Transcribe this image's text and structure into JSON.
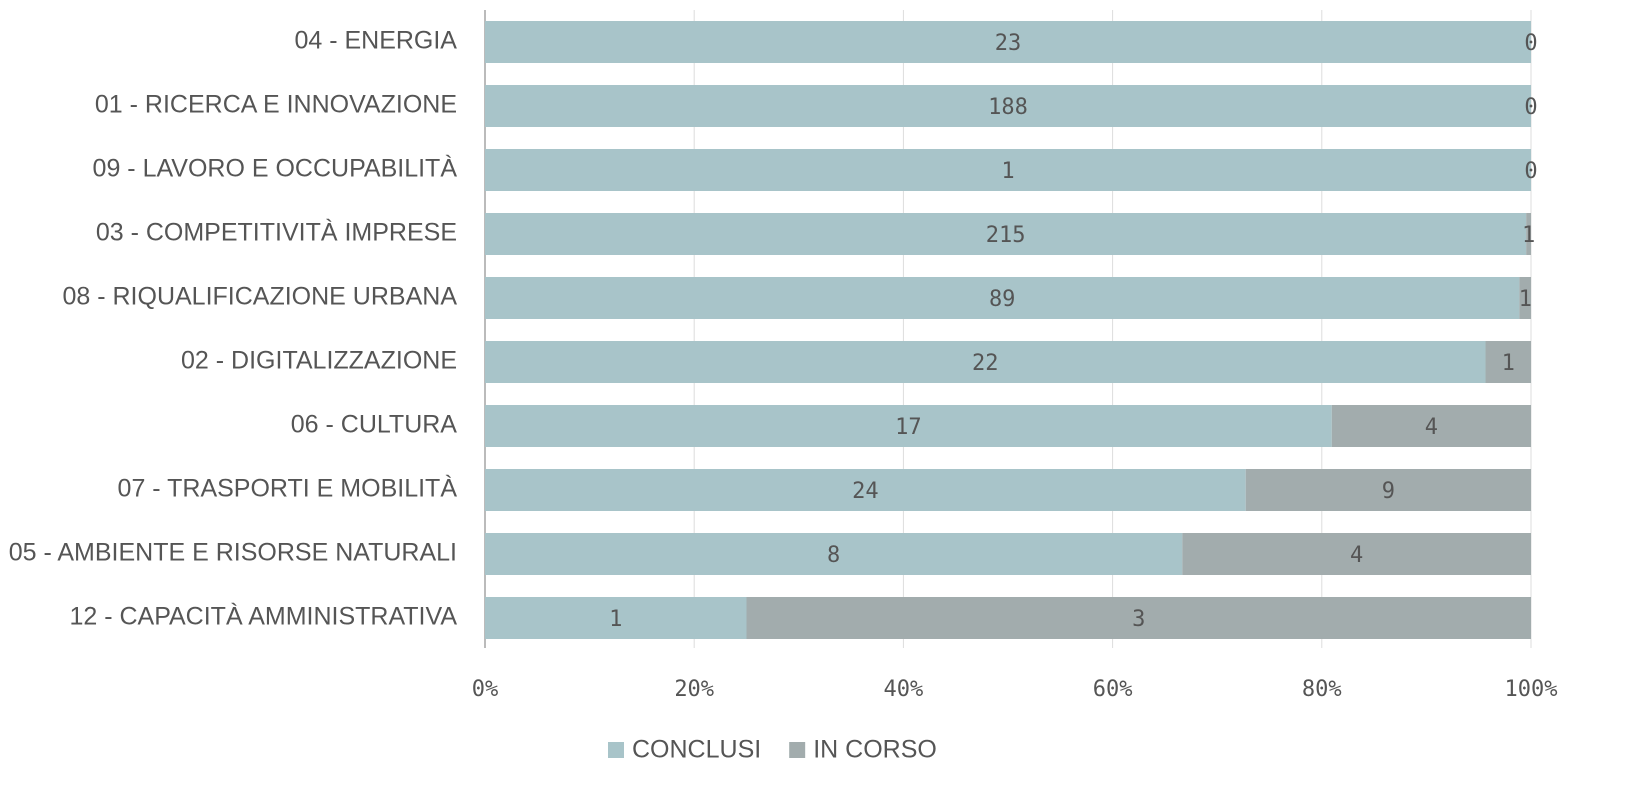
{
  "chart_data": {
    "type": "bar",
    "orientation": "horizontal",
    "stacking": "percent",
    "categories": [
      "04 - ENERGIA",
      "01 - RICERCA E INNOVAZIONE",
      "09 - LAVORO E OCCUPABILITÀ",
      "03 - COMPETITIVITÀ IMPRESE",
      "08 - RIQUALIFICAZIONE URBANA",
      "02 - DIGITALIZZAZIONE",
      "06 - CULTURA",
      "07 - TRASPORTI E MOBILITÀ",
      "05 - AMBIENTE E RISORSE NATURALI",
      "12 - CAPACITÀ AMMINISTRATIVA"
    ],
    "series": [
      {
        "name": "CONCLUSI",
        "color": "#a8c4c9",
        "values": [
          23,
          188,
          1,
          215,
          89,
          22,
          17,
          24,
          8,
          1
        ]
      },
      {
        "name": "IN CORSO",
        "color": "#a2acad",
        "values": [
          0,
          0,
          0,
          1,
          1,
          1,
          4,
          9,
          4,
          3
        ]
      }
    ],
    "xlim": [
      0,
      100
    ],
    "xticks": [
      {
        "value": 0,
        "label": "0%"
      },
      {
        "value": 20,
        "label": "20%"
      },
      {
        "value": 40,
        "label": "40%"
      },
      {
        "value": 60,
        "label": "60%"
      },
      {
        "value": 80,
        "label": "80%"
      },
      {
        "value": 100,
        "label": "100%"
      }
    ],
    "grid": true,
    "legend": "bottom"
  }
}
